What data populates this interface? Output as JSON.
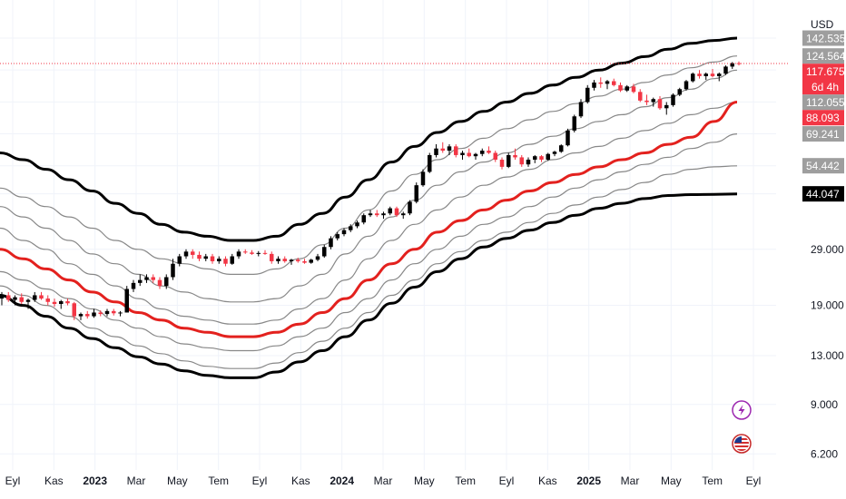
{
  "chart_data": {
    "type": "candlestick",
    "currency": "USD",
    "scale": "log",
    "ylim": [
      5.8,
      190
    ],
    "x_tick_labels": [
      {
        "t": 0,
        "label": "Eyl",
        "bold": false
      },
      {
        "t": 2,
        "label": "Kas",
        "bold": false
      },
      {
        "t": 4,
        "label": "2023",
        "bold": true
      },
      {
        "t": 6,
        "label": "Mar",
        "bold": false
      },
      {
        "t": 8,
        "label": "May",
        "bold": false
      },
      {
        "t": 10,
        "label": "Tem",
        "bold": false
      },
      {
        "t": 12,
        "label": "Eyl",
        "bold": false
      },
      {
        "t": 14,
        "label": "Kas",
        "bold": false
      },
      {
        "t": 16,
        "label": "2024",
        "bold": true
      },
      {
        "t": 18,
        "label": "Mar",
        "bold": false
      },
      {
        "t": 20,
        "label": "May",
        "bold": false
      },
      {
        "t": 22,
        "label": "Tem",
        "bold": false
      },
      {
        "t": 24,
        "label": "Eyl",
        "bold": false
      },
      {
        "t": 26,
        "label": "Kas",
        "bold": false
      },
      {
        "t": 28,
        "label": "2025",
        "bold": true
      },
      {
        "t": 30,
        "label": "Mar",
        "bold": false
      },
      {
        "t": 32,
        "label": "May",
        "bold": false
      },
      {
        "t": 34,
        "label": "Tem",
        "bold": false
      },
      {
        "t": 36,
        "label": "Eyl",
        "bold": false
      }
    ],
    "y_tick_labels": [
      {
        "value": 29.0,
        "label": "29.000"
      },
      {
        "value": 19.0,
        "label": "19.000"
      },
      {
        "value": 13.0,
        "label": "13.000"
      },
      {
        "value": 9.0,
        "label": "9.000"
      },
      {
        "value": 6.2,
        "label": "6.200"
      }
    ],
    "price_badges": [
      {
        "value": 142.535,
        "label": "142.535",
        "color": "#9e9e9e"
      },
      {
        "value": 124.564,
        "label": "124.564",
        "color": "#9e9e9e"
      },
      {
        "value": 117.675,
        "label": "117.675",
        "sub": "6d 4h",
        "color": "#f23645"
      },
      {
        "value": 112.055,
        "label": "112.055",
        "color": "#9e9e9e"
      },
      {
        "value": 88.093,
        "label": "88.093",
        "color": "#f23645"
      },
      {
        "value": 69.241,
        "label": "69.241",
        "color": "#9e9e9e"
      },
      {
        "value": 54.442,
        "label": "54.442",
        "color": "#9e9e9e"
      },
      {
        "value": 44.047,
        "label": "44.047",
        "color": "#000000"
      }
    ],
    "last_price": 117.675,
    "bands": [
      {
        "name": "upper-outer",
        "color": "#000000",
        "width": 3,
        "values": [
          60,
          57,
          53,
          49,
          45,
          41,
          38,
          35,
          33,
          32,
          31,
          31,
          32,
          35,
          38,
          43,
          49,
          56,
          63,
          70,
          76,
          82,
          88,
          94,
          100,
          106,
          112,
          118,
          124,
          131,
          137,
          140,
          142.5
        ]
      },
      {
        "name": "upper-3",
        "color": "#888888",
        "width": 1.2,
        "values": [
          46,
          43,
          40,
          37,
          34,
          31,
          29,
          27,
          26,
          25,
          24,
          24,
          25,
          27,
          30,
          34,
          39,
          45,
          51,
          57,
          62,
          67,
          72,
          77,
          82,
          87,
          92,
          97,
          102,
          108,
          114,
          119,
          124.6
        ]
      },
      {
        "name": "upper-2",
        "color": "#888888",
        "width": 1.2,
        "values": [
          40,
          37,
          34,
          31,
          28,
          26,
          24,
          22,
          21,
          20,
          19.5,
          19.5,
          20,
          22,
          24,
          28,
          32,
          37,
          42,
          47,
          52,
          56,
          60,
          64,
          68,
          72,
          76,
          80,
          85,
          91,
          97,
          105,
          112
        ]
      },
      {
        "name": "upper-1",
        "color": "#888888",
        "width": 1.2,
        "values": [
          34,
          31,
          29,
          26,
          24,
          22,
          20,
          18.5,
          17.5,
          17,
          16.5,
          16.5,
          17,
          18.5,
          20,
          23,
          27,
          31,
          35,
          39,
          43,
          47,
          50,
          53,
          57,
          60,
          63,
          67,
          71,
          75,
          80,
          84,
          88
        ]
      },
      {
        "name": "median",
        "color": "#e3211e",
        "width": 3,
        "values": [
          29,
          27,
          25,
          23,
          21,
          19.5,
          18,
          17,
          16,
          15.5,
          15,
          15,
          15.5,
          16.5,
          18,
          20,
          23,
          26,
          29,
          33,
          36,
          39,
          42,
          45,
          48,
          51,
          54,
          57,
          60,
          64,
          67.5,
          76,
          88
        ]
      },
      {
        "name": "lower-1",
        "color": "#888888",
        "width": 1.2,
        "values": [
          24.5,
          23,
          21.5,
          20,
          18.5,
          17,
          16,
          15,
          14.2,
          13.8,
          13.5,
          13.5,
          14,
          15,
          16,
          18,
          20,
          23,
          26,
          29,
          32,
          35,
          37,
          40,
          43,
          46,
          49,
          52,
          55,
          58,
          62,
          65,
          69.2
        ]
      },
      {
        "name": "lower-2",
        "color": "#888888",
        "width": 1.2,
        "values": [
          22,
          20.5,
          19,
          17.5,
          16,
          15,
          14,
          13.2,
          12.5,
          12,
          11.8,
          11.8,
          12.3,
          13.3,
          14.5,
          16,
          18,
          20.5,
          23,
          26,
          28.5,
          31,
          33,
          35.5,
          38,
          40.5,
          43,
          45.5,
          48,
          51,
          53,
          54,
          54.4
        ]
      },
      {
        "name": "lower-outer",
        "color": "#000000",
        "width": 3,
        "values": [
          20.5,
          19,
          17.5,
          16,
          14.8,
          13.8,
          12.9,
          12.2,
          11.6,
          11.2,
          11,
          11,
          11.5,
          12.4,
          13.5,
          15,
          17,
          19.3,
          21.8,
          24.5,
          27,
          29.5,
          31.5,
          33.5,
          35.5,
          37.5,
          39.5,
          41,
          42.5,
          43.5,
          43.8,
          43.9,
          44
        ]
      }
    ],
    "candles": [
      [
        20,
        21,
        19,
        20.5
      ],
      [
        20.5,
        21,
        19.5,
        19.8
      ],
      [
        19.8,
        20.5,
        19,
        20.2
      ],
      [
        20.2,
        20.8,
        19.2,
        19.5
      ],
      [
        19.5,
        20,
        18.5,
        19.8
      ],
      [
        19.8,
        21,
        19.5,
        20.5
      ],
      [
        20.5,
        21,
        19.8,
        20
      ],
      [
        20,
        20.5,
        19,
        19.5
      ],
      [
        19.5,
        20,
        18.8,
        19.2
      ],
      [
        19.2,
        19.8,
        18.5,
        19.6
      ],
      [
        19.6,
        20,
        19,
        19.3
      ],
      [
        19.3,
        19.5,
        17,
        17.5
      ],
      [
        17.5,
        18,
        17,
        17.8
      ],
      [
        17.8,
        18.2,
        17.2,
        17.5
      ],
      [
        17.5,
        18.5,
        17.3,
        18
      ],
      [
        18,
        18.3,
        17.5,
        17.8
      ],
      [
        17.8,
        18.5,
        17.5,
        18.2
      ],
      [
        18.2,
        18.5,
        17.6,
        17.9
      ],
      [
        17.9,
        18.2,
        17.5,
        18
      ],
      [
        18,
        22,
        18,
        21.5
      ],
      [
        21.5,
        23,
        21,
        22.5
      ],
      [
        22.5,
        24,
        22,
        23
      ],
      [
        23,
        24,
        22.5,
        23.5
      ],
      [
        23.5,
        24,
        22.5,
        23
      ],
      [
        23,
        23.5,
        21.5,
        22
      ],
      [
        22,
        24,
        21.5,
        23.5
      ],
      [
        23.5,
        27,
        23,
        26
      ],
      [
        26,
        28,
        25.5,
        27.5
      ],
      [
        27.5,
        29,
        27,
        28.5
      ],
      [
        28.5,
        29,
        27,
        27.8
      ],
      [
        27.8,
        28.5,
        26.5,
        27
      ],
      [
        27,
        28,
        26.5,
        27.5
      ],
      [
        27.5,
        28,
        26,
        26.5
      ],
      [
        26.5,
        27.5,
        26,
        27
      ],
      [
        27,
        27.5,
        25.5,
        26
      ],
      [
        26,
        28,
        25.8,
        27.5
      ],
      [
        27.5,
        29,
        27,
        28.5
      ],
      [
        28.5,
        29,
        28,
        28.3
      ],
      [
        28.3,
        28.8,
        27.8,
        28
      ],
      [
        28,
        28.6,
        27.5,
        28.2
      ],
      [
        28.2,
        28.8,
        27.8,
        28
      ],
      [
        28,
        28.5,
        26,
        26.5
      ],
      [
        26.5,
        27.5,
        26,
        27
      ],
      [
        27,
        27.5,
        26.2,
        26.5
      ],
      [
        26.5,
        27,
        25.8,
        26.8
      ],
      [
        26.8,
        27.2,
        26.2,
        26.5
      ],
      [
        26.5,
        27,
        26,
        26.2
      ],
      [
        26.2,
        27,
        26,
        26.8
      ],
      [
        26.8,
        28,
        26.5,
        27.5
      ],
      [
        27.5,
        30,
        27.2,
        29.5
      ],
      [
        29.5,
        32,
        29,
        31.5
      ],
      [
        31.5,
        33,
        31,
        32.5
      ],
      [
        32.5,
        34,
        32,
        33.5
      ],
      [
        33.5,
        35,
        33,
        34.5
      ],
      [
        34.5,
        36,
        34,
        35.5
      ],
      [
        35.5,
        38,
        35,
        37.5
      ],
      [
        37.5,
        39,
        37,
        38
      ],
      [
        38,
        39,
        37,
        37.5
      ],
      [
        37.5,
        38.5,
        36.5,
        38
      ],
      [
        38,
        40,
        37.5,
        39.5
      ],
      [
        39.5,
        40,
        37,
        37.5
      ],
      [
        37.5,
        38.5,
        36.5,
        38
      ],
      [
        38,
        42,
        37.5,
        41.5
      ],
      [
        41.5,
        48,
        41,
        47
      ],
      [
        47,
        53,
        46.5,
        52
      ],
      [
        52,
        60,
        51.5,
        59
      ],
      [
        59,
        64,
        58,
        62
      ],
      [
        62,
        65,
        60,
        61
      ],
      [
        61,
        64,
        59,
        63
      ],
      [
        63,
        64,
        58,
        59
      ],
      [
        59,
        61,
        57,
        60
      ],
      [
        60,
        62,
        58,
        58.5
      ],
      [
        58.5,
        60,
        57,
        59.5
      ],
      [
        59.5,
        62,
        58.5,
        61
      ],
      [
        61,
        63,
        59.5,
        60
      ],
      [
        60,
        61,
        56,
        57
      ],
      [
        57,
        58,
        53,
        54
      ],
      [
        54,
        60,
        53.5,
        59
      ],
      [
        59,
        62,
        57,
        58
      ],
      [
        58,
        59,
        54,
        55
      ],
      [
        55,
        58,
        54,
        57
      ],
      [
        57,
        59,
        55.5,
        58.5
      ],
      [
        58.5,
        59,
        56,
        57
      ],
      [
        57,
        60,
        56.5,
        59.5
      ],
      [
        59.5,
        61,
        58.5,
        60.5
      ],
      [
        60.5,
        64,
        60,
        63.5
      ],
      [
        63.5,
        72,
        63,
        71
      ],
      [
        71,
        80,
        70,
        79
      ],
      [
        79,
        90,
        78,
        88
      ],
      [
        88,
        100,
        87,
        98
      ],
      [
        98,
        104,
        96,
        102
      ],
      [
        102,
        106,
        98,
        101
      ],
      [
        101,
        104,
        97,
        103
      ],
      [
        103,
        105,
        99,
        100
      ],
      [
        100,
        102,
        95,
        96
      ],
      [
        96,
        100,
        95,
        99
      ],
      [
        99,
        101,
        94,
        95
      ],
      [
        95,
        97,
        88,
        89
      ],
      [
        89,
        93,
        86,
        88
      ],
      [
        88,
        91,
        85,
        90
      ],
      [
        90,
        92,
        83,
        84
      ],
      [
        84,
        88,
        80,
        86
      ],
      [
        86,
        94,
        85,
        93
      ],
      [
        93,
        98,
        92,
        97
      ],
      [
        97,
        104,
        96,
        103
      ],
      [
        103,
        110,
        102,
        109
      ],
      [
        109,
        112,
        105,
        107
      ],
      [
        107,
        110,
        104,
        109
      ],
      [
        109,
        113,
        106,
        107
      ],
      [
        107,
        110,
        103,
        109
      ],
      [
        109,
        116,
        108,
        115
      ],
      [
        115,
        119,
        113,
        118
      ],
      [
        118,
        119.5,
        116,
        117.675
      ]
    ]
  }
}
